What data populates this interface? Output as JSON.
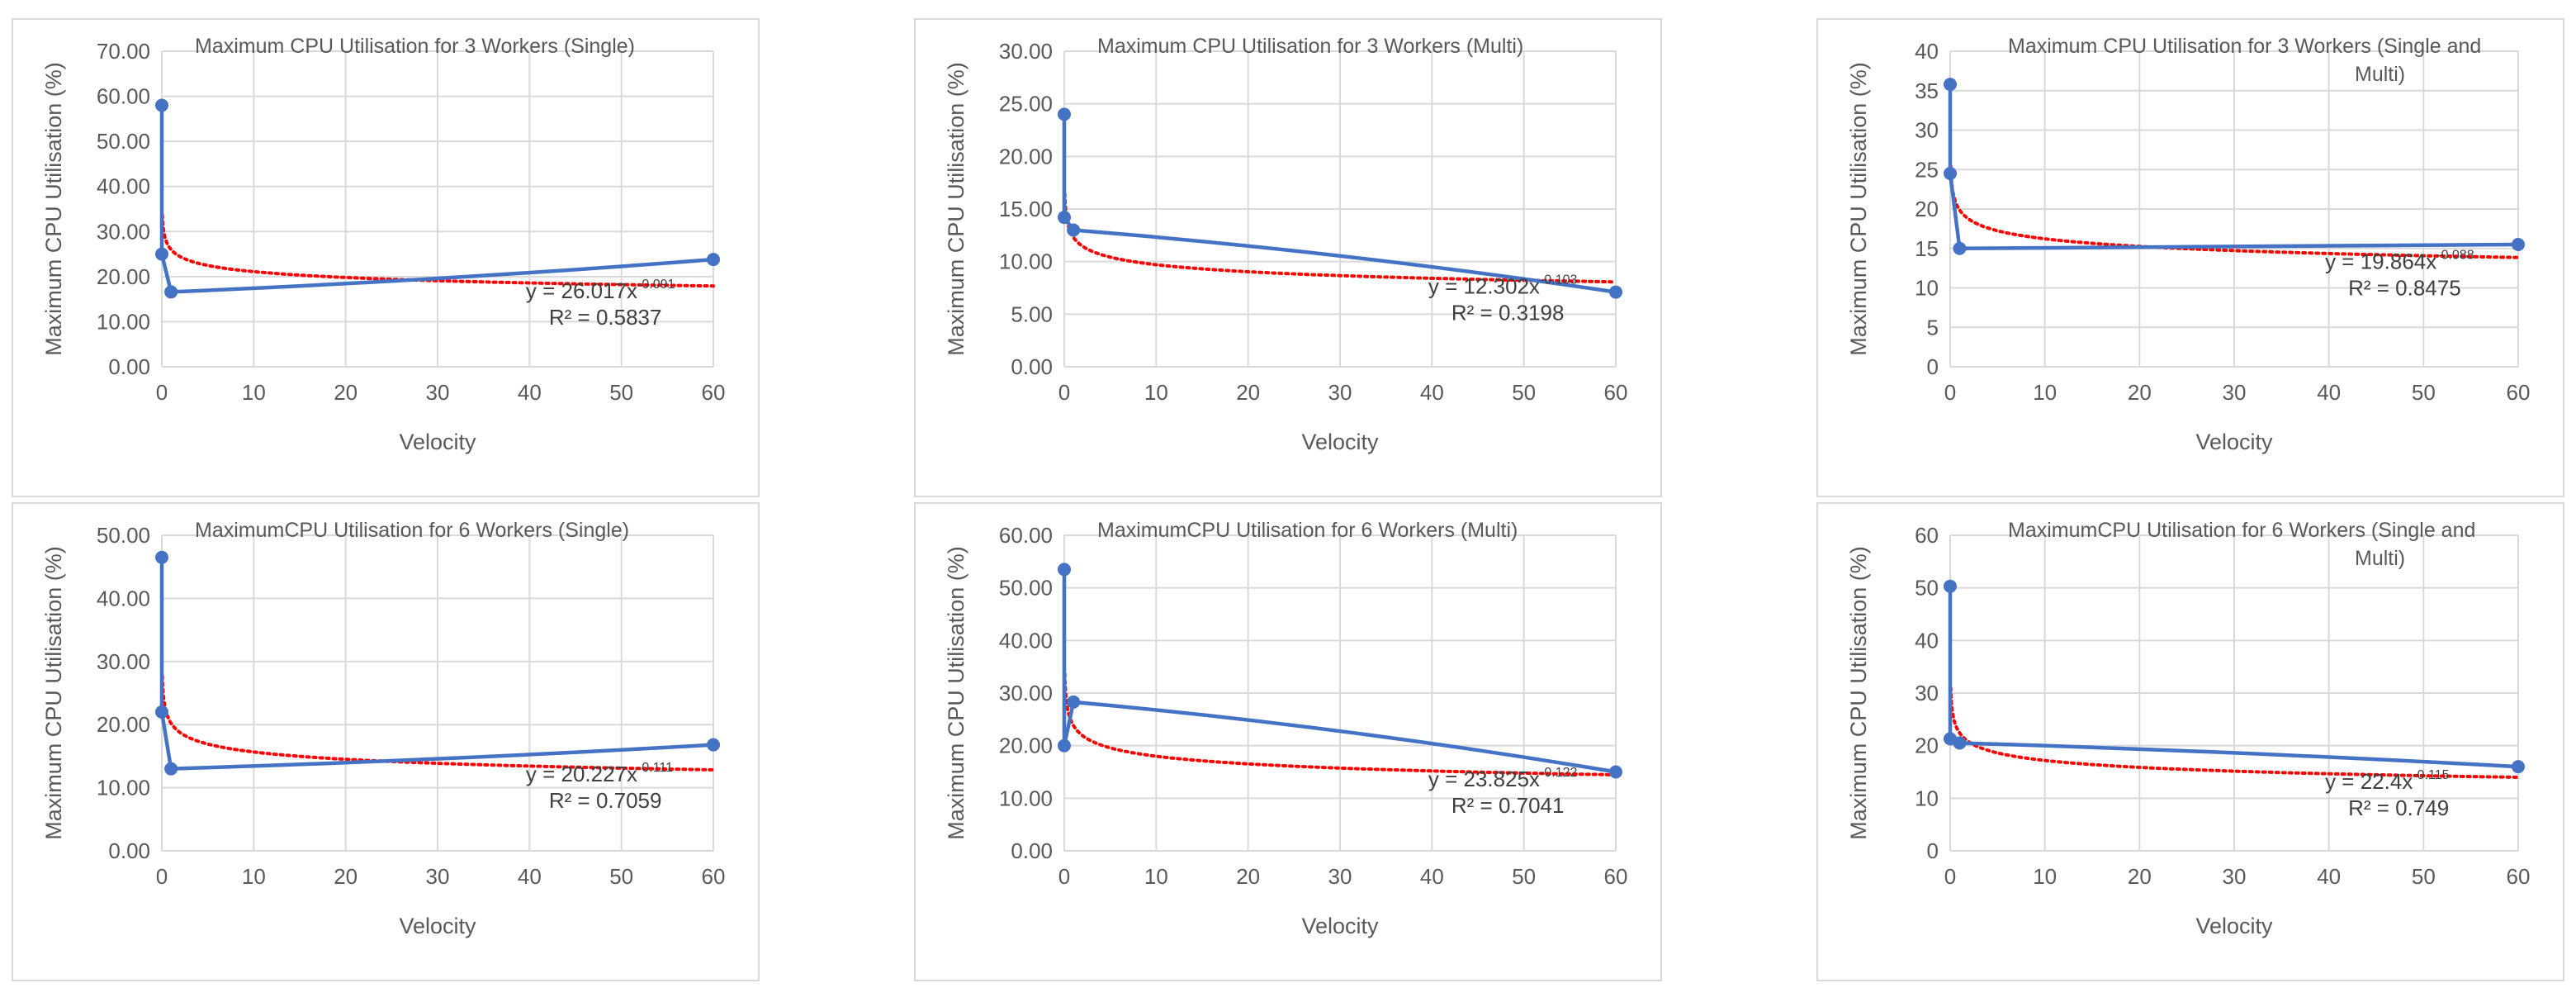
{
  "chart_data": [
    {
      "type": "scatter",
      "title": "Maximum CPU Utilisation for 3 Workers (Single)",
      "xlabel": "Velocity",
      "ylabel": "Maximum CPU Utilisation (%)",
      "xlim": [
        0,
        60
      ],
      "ylim": [
        0,
        70
      ],
      "x_ticks": [
        "0",
        "10",
        "20",
        "30",
        "40",
        "50",
        "60"
      ],
      "y_ticks": [
        "0.00",
        "10.00",
        "20.00",
        "30.00",
        "40.00",
        "50.00",
        "60.00",
        "70.00"
      ],
      "grid": true,
      "series": [
        {
          "name": "Maximum CPU Utilisation",
          "x": [
            0,
            0,
            1,
            60
          ],
          "y": [
            58,
            25,
            16.6,
            23.8
          ]
        }
      ],
      "trendline": {
        "type": "power",
        "a": 26.017,
        "b": -0.091
      },
      "trendline_label": {
        "equation": "y = 26.017x",
        "exponent": "-0.091",
        "r2": "R² = 0.5837"
      }
    },
    {
      "type": "scatter",
      "title": "Maximum CPU Utilisation for 3 Workers (Multi)",
      "xlabel": "Velocity",
      "ylabel": "Maximum CPU Utilisation (%)",
      "xlim": [
        0,
        60
      ],
      "ylim": [
        0,
        30
      ],
      "x_ticks": [
        "0",
        "10",
        "20",
        "30",
        "40",
        "50",
        "60"
      ],
      "y_ticks": [
        "0.00",
        "5.00",
        "10.00",
        "15.00",
        "20.00",
        "25.00",
        "30.00"
      ],
      "grid": true,
      "series": [
        {
          "name": "Maximum CPU Utilisation",
          "x": [
            0,
            0,
            1,
            60
          ],
          "y": [
            24,
            14.2,
            13,
            7.1
          ]
        }
      ],
      "trendline": {
        "type": "power",
        "a": 12.302,
        "b": -0.103
      },
      "trendline_label": {
        "equation": "y = 12.302x",
        "exponent": "-0.103",
        "r2": "R² = 0.3198"
      }
    },
    {
      "type": "scatter",
      "title": "Maximum CPU Utilisation for 3 Workers (Single and Multi)",
      "xlabel": "Velocity",
      "ylabel": "Maximum CPU Utilisation (%)",
      "xlim": [
        0,
        60
      ],
      "ylim": [
        0,
        40
      ],
      "x_ticks": [
        "0",
        "10",
        "20",
        "30",
        "40",
        "50",
        "60"
      ],
      "y_ticks": [
        "0",
        "5",
        "10",
        "15",
        "20",
        "25",
        "30",
        "35",
        "40"
      ],
      "grid": true,
      "series": [
        {
          "name": "Maximum CPU Utilisation",
          "x": [
            0,
            0,
            1,
            60
          ],
          "y": [
            35.8,
            24.5,
            15,
            15.5
          ]
        }
      ],
      "trendline": {
        "type": "power",
        "a": 19.864,
        "b": -0.088
      },
      "trendline_label": {
        "equation": "y = 19.864x",
        "exponent": "-0.088",
        "r2": "R² = 0.8475"
      }
    },
    {
      "type": "scatter",
      "title": "MaximumCPU Utilisation for 6 Workers (Single)",
      "xlabel": "Velocity",
      "ylabel": "Maximum CPU Utilisation (%)",
      "xlim": [
        0,
        60
      ],
      "ylim": [
        0,
        50
      ],
      "x_ticks": [
        "0",
        "10",
        "20",
        "30",
        "40",
        "50",
        "60"
      ],
      "y_ticks": [
        "0.00",
        "10.00",
        "20.00",
        "30.00",
        "40.00",
        "50.00"
      ],
      "grid": true,
      "series": [
        {
          "name": "Maximum CPU Utilisation",
          "x": [
            0,
            0,
            1,
            60
          ],
          "y": [
            46.5,
            22,
            13,
            16.8
          ]
        }
      ],
      "trendline": {
        "type": "power",
        "a": 20.227,
        "b": -0.111
      },
      "trendline_label": {
        "equation": "y = 20.227x",
        "exponent": "-0.111",
        "r2": "R² = 0.7059"
      }
    },
    {
      "type": "scatter",
      "title": "MaximumCPU Utilisation for 6 Workers (Multi)",
      "xlabel": "Velocity",
      "ylabel": "Maximum CPU Utilisation (%)",
      "xlim": [
        0,
        60
      ],
      "ylim": [
        0,
        60
      ],
      "x_ticks": [
        "0",
        "10",
        "20",
        "30",
        "40",
        "50",
        "60"
      ],
      "y_ticks": [
        "0.00",
        "10.00",
        "20.00",
        "30.00",
        "40.00",
        "50.00",
        "60.00"
      ],
      "grid": true,
      "series": [
        {
          "name": "Maximum CPU Utilisation",
          "x": [
            0,
            0,
            1,
            60
          ],
          "y": [
            53.5,
            20,
            28.3,
            15
          ]
        }
      ],
      "trendline": {
        "type": "power",
        "a": 23.825,
        "b": -0.122
      },
      "trendline_label": {
        "equation": "y = 23.825x",
        "exponent": "-0.122",
        "r2": "R² = 0.7041"
      }
    },
    {
      "type": "scatter",
      "title": "MaximumCPU Utilisation for 6 Workers (Single and Multi)",
      "xlabel": "Velocity",
      "ylabel": "Maximum CPU Utilisation (%)",
      "xlim": [
        0,
        60
      ],
      "ylim": [
        0,
        60
      ],
      "x_ticks": [
        "0",
        "10",
        "20",
        "30",
        "40",
        "50",
        "60"
      ],
      "y_ticks": [
        "0",
        "10",
        "20",
        "30",
        "40",
        "50",
        "60"
      ],
      "grid": true,
      "series": [
        {
          "name": "Maximum CPU Utilisation",
          "x": [
            0,
            0,
            1,
            60
          ],
          "y": [
            50.3,
            21.3,
            20.5,
            16
          ]
        }
      ],
      "trendline": {
        "type": "power",
        "a": 22.4,
        "b": -0.115
      },
      "trendline_label": {
        "equation": "y = 22.4x",
        "exponent": "-0.115",
        "r2": "R² = 0.749"
      }
    }
  ],
  "colors": {
    "series": "#4472c4",
    "trendline": "#ff0000",
    "grid": "#d9d9d9",
    "text": "#595959",
    "border": "#d9d9d9"
  }
}
